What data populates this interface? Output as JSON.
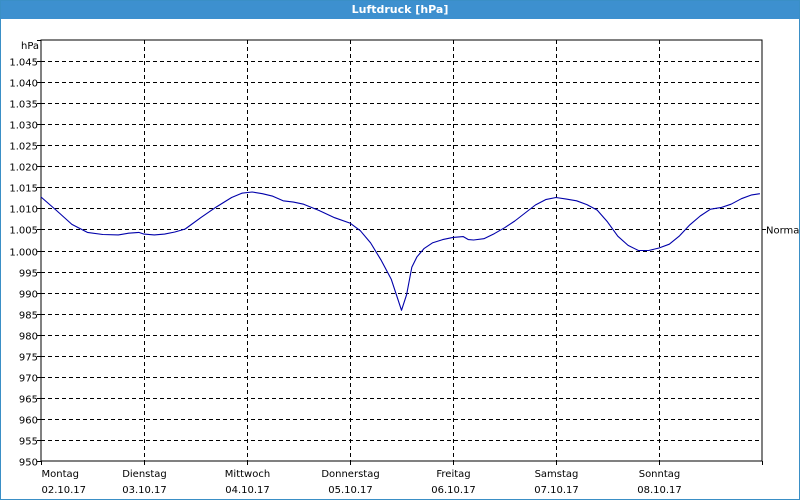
{
  "window": {
    "title": "Luftdruck [hPa]"
  },
  "chart_data": {
    "type": "line",
    "title": "Luftdruck [hPa]",
    "ylabel": "hPa",
    "ylim": [
      950,
      1050
    ],
    "yticks": [
      950,
      955,
      960,
      965,
      970,
      975,
      980,
      985,
      990,
      995,
      1000,
      1005,
      1010,
      1015,
      1020,
      1025,
      1030,
      1035,
      1040,
      1045
    ],
    "ytick_labels": [
      "950",
      "955",
      "960",
      "965",
      "970",
      "975",
      "980",
      "985",
      "990",
      "995",
      "1.000",
      "1.005",
      "1.010",
      "1.015",
      "1.020",
      "1.025",
      "1.030",
      "1.035",
      "1.040",
      "1.045"
    ],
    "xlim": [
      0,
      7
    ],
    "xticks": [
      {
        "pos": 0,
        "day": "Montag",
        "date": "02.10.17"
      },
      {
        "pos": 1,
        "day": "Dienstag",
        "date": "03.10.17"
      },
      {
        "pos": 2,
        "day": "Mittwoch",
        "date": "04.10.17"
      },
      {
        "pos": 3,
        "day": "Donnerstag",
        "date": "05.10.17"
      },
      {
        "pos": 4,
        "day": "Freitag",
        "date": "06.10.17"
      },
      {
        "pos": 5,
        "day": "Samstag",
        "date": "07.10.17"
      },
      {
        "pos": 6,
        "day": "Sonntag",
        "date": "08.10.17"
      }
    ],
    "reference_line": {
      "label": "Normal",
      "value": 1005
    },
    "grid": true,
    "series": [
      {
        "color": "#0000aa",
        "x": [
          0,
          0.15,
          0.3,
          0.45,
          0.6,
          0.75,
          0.85,
          0.95,
          1.0,
          1.1,
          1.2,
          1.3,
          1.4,
          1.55,
          1.7,
          1.85,
          1.95,
          2.05,
          2.15,
          2.25,
          2.35,
          2.45,
          2.55,
          2.7,
          2.85,
          3.0,
          3.1,
          3.2,
          3.3,
          3.4,
          3.5,
          3.55,
          3.6,
          3.65,
          3.72,
          3.8,
          3.9,
          4.0,
          4.1,
          4.15,
          4.2,
          4.3,
          4.4,
          4.5,
          4.6,
          4.7,
          4.8,
          4.9,
          5.0,
          5.1,
          5.2,
          5.3,
          5.4,
          5.5,
          5.6,
          5.7,
          5.8,
          5.9,
          6.0,
          6.1,
          6.2,
          6.3,
          6.4,
          6.5,
          6.6,
          6.7,
          6.8,
          6.9,
          6.98
        ],
        "values": [
          1012.7,
          1009.5,
          1006.2,
          1004.3,
          1003.8,
          1003.7,
          1004.1,
          1004.3,
          1003.9,
          1003.7,
          1003.9,
          1004.4,
          1005.1,
          1007.8,
          1010.3,
          1012.6,
          1013.6,
          1013.9,
          1013.5,
          1012.9,
          1011.8,
          1011.5,
          1011.0,
          1009.5,
          1007.8,
          1006.5,
          1004.7,
          1001.8,
          997.8,
          993.2,
          985.8,
          989.5,
          996.0,
          998.5,
          1000.5,
          1001.8,
          1002.6,
          1003.1,
          1003.3,
          1002.6,
          1002.5,
          1002.8,
          1004.0,
          1005.4,
          1007.0,
          1008.9,
          1010.8,
          1012.1,
          1012.6,
          1012.2,
          1011.8,
          1010.9,
          1009.6,
          1006.8,
          1003.4,
          1001.2,
          1000.0,
          1000.0,
          1000.6,
          1001.5,
          1003.5,
          1006.1,
          1008.2,
          1009.8,
          1010.2,
          1011.0,
          1012.3,
          1013.2,
          1013.5
        ]
      }
    ]
  }
}
